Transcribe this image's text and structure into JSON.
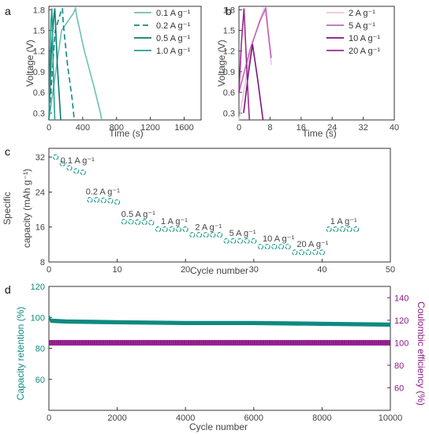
{
  "chart_data": [
    {
      "panel": "a",
      "type": "line",
      "xlabel": "Time (s)",
      "ylabel": "Voltage (V)",
      "xlim": [
        0,
        1800
      ],
      "ylim": [
        0.2,
        1.85
      ],
      "xticks": [
        "0",
        "400",
        "800",
        "1200",
        "1600"
      ],
      "yticks": [
        "0.3",
        "0.6",
        "0.9",
        "1.2",
        "1.5",
        "1.8"
      ],
      "legend": "top-right",
      "series": [
        {
          "name": "0.1 A g⁻¹",
          "color": "#6cc0b4",
          "dash": "",
          "points": [
            [
              0,
              0.2
            ],
            [
              150,
              1.5
            ],
            [
              290,
              1.75
            ],
            [
              315,
              1.82
            ],
            [
              330,
              1.7
            ],
            [
              420,
              1.2
            ],
            [
              530,
              0.7
            ],
            [
              610,
              0.3
            ],
            [
              625,
              0.2
            ]
          ]
        },
        {
          "name": "0.2 A g⁻¹",
          "color": "#0e8a80",
          "dash": "7,4",
          "points": [
            [
              0,
              0.2
            ],
            [
              75,
              1.5
            ],
            [
              145,
              1.78
            ],
            [
              160,
              1.82
            ],
            [
              170,
              1.6
            ],
            [
              220,
              1.0
            ],
            [
              275,
              0.5
            ],
            [
              300,
              0.2
            ]
          ]
        },
        {
          "name": "0.5 A g⁻¹",
          "color": "#0b7a73",
          "dash": "",
          "points": [
            [
              0,
              0.2
            ],
            [
              30,
              1.2
            ],
            [
              55,
              1.65
            ],
            [
              70,
              1.82
            ],
            [
              78,
              1.6
            ],
            [
              100,
              1.0
            ],
            [
              125,
              0.5
            ],
            [
              140,
              0.2
            ]
          ]
        },
        {
          "name": "1.0 A g⁻¹",
          "color": "#2a9e92",
          "dash": "",
          "points": [
            [
              0,
              0.2
            ],
            [
              15,
              1.2
            ],
            [
              25,
              1.65
            ],
            [
              35,
              1.82
            ],
            [
              40,
              1.6
            ],
            [
              50,
              1.0
            ],
            [
              62,
              0.5
            ],
            [
              70,
              0.2
            ]
          ]
        }
      ]
    },
    {
      "panel": "b",
      "type": "line",
      "xlabel": "Time (s)",
      "ylabel": "Voltage (V)",
      "xlim": [
        0,
        40
      ],
      "ylim": [
        0.2,
        1.85
      ],
      "xticks": [
        "0",
        "8",
        "16",
        "24",
        "32",
        "40"
      ],
      "yticks": [
        "0.3",
        "0.6",
        "0.9",
        "1.2",
        "1.5",
        "1.8"
      ],
      "legend": "top-right",
      "series": [
        {
          "name": "2 A g⁻¹",
          "color": "#e8c4e4",
          "dash": "",
          "points": [
            [
              0,
              0.2
            ],
            [
              3,
              1.2
            ],
            [
              5,
              1.6
            ],
            [
              6.5,
              1.82
            ],
            [
              7,
              1.7
            ],
            [
              8,
              1.2
            ],
            [
              8.3,
              1.0
            ]
          ]
        },
        {
          "name": "5 A g⁻¹",
          "color": "#c266b8",
          "dash": "",
          "points": [
            [
              0,
              0.6
            ],
            [
              3,
              1.25
            ],
            [
              5.5,
              1.65
            ],
            [
              6.9,
              1.82
            ],
            [
              7.5,
              1.5
            ],
            [
              8.3,
              1.1
            ]
          ]
        },
        {
          "name": "10 A g⁻¹",
          "color": "#7d157e",
          "dash": "",
          "points": [
            [
              1.2,
              0.3
            ],
            [
              2.5,
              0.9
            ],
            [
              3.5,
              1.3
            ],
            [
              4.8,
              0.8
            ],
            [
              6.2,
              0.2
            ]
          ]
        },
        {
          "name": "20 A g⁻¹",
          "color": "#9a2a8f",
          "dash": "",
          "points": [
            [
              0,
              0.6
            ],
            [
              0.6,
              1.3
            ],
            [
              1.3,
              1.82
            ],
            [
              1.8,
              1.2
            ],
            [
              2.4,
              0.5
            ],
            [
              2.7,
              0.2
            ]
          ]
        }
      ]
    },
    {
      "panel": "c",
      "type": "scatter",
      "xlabel": "Cycle number",
      "ylabel": "Specific capacity (mAh g⁻¹)",
      "xlim": [
        0,
        50
      ],
      "ylim": [
        8,
        34
      ],
      "xticks": [
        "0",
        "10",
        "20",
        "30",
        "40",
        "50"
      ],
      "yticks": [
        "8",
        "16",
        "24",
        "32"
      ],
      "marker_color": "#1a9a8c",
      "x": [
        1,
        2,
        3,
        4,
        5,
        6,
        7,
        8,
        9,
        10,
        11,
        12,
        13,
        14,
        15,
        16,
        17,
        18,
        19,
        20,
        21,
        22,
        23,
        24,
        25,
        26,
        27,
        28,
        29,
        30,
        31,
        32,
        33,
        34,
        35,
        36,
        37,
        38,
        39,
        40,
        41,
        42,
        43,
        44,
        45
      ],
      "y": [
        32,
        30.5,
        29.5,
        28.8,
        28.5,
        22.2,
        22.2,
        22.1,
        22.0,
        21.7,
        17.2,
        17.2,
        17.1,
        17.1,
        17.0,
        15.5,
        15.5,
        15.5,
        15.5,
        15.5,
        14.2,
        14.2,
        14.2,
        14.2,
        14.2,
        12.8,
        12.8,
        12.8,
        12.8,
        12.8,
        11.5,
        11.5,
        11.5,
        11.5,
        11.5,
        10.2,
        10.2,
        10.2,
        10.2,
        10.2,
        15.5,
        15.5,
        15.5,
        15.5,
        15.5
      ],
      "annotations": [
        {
          "text": "0.1 A g⁻¹",
          "x": 1.7,
          "y": 30.6
        },
        {
          "text": "0.2 A g⁻¹",
          "x": 5.4,
          "y": 23.4
        },
        {
          "text": "0.5 A g⁻¹",
          "x": 10.6,
          "y": 18.3
        },
        {
          "text": "1 A g⁻¹",
          "x": 16.4,
          "y": 16.7
        },
        {
          "text": "2 A g⁻¹",
          "x": 21.4,
          "y": 15.3
        },
        {
          "text": "5 A g⁻¹",
          "x": 26.4,
          "y": 14.0
        },
        {
          "text": "10 A g⁻¹",
          "x": 31.3,
          "y": 12.7
        },
        {
          "text": "20 A g⁻¹",
          "x": 36.3,
          "y": 11.4
        },
        {
          "text": "1 A g⁻¹",
          "x": 41.2,
          "y": 16.7
        }
      ]
    },
    {
      "panel": "d",
      "type": "scatter",
      "xlabel": "Cycle number",
      "ylabel": "Capacity retention (%)",
      "ylabel2": "Coulombic efficiency (%)",
      "xlim": [
        0,
        10000
      ],
      "ylim": [
        40,
        120
      ],
      "ylim2": [
        40,
        150
      ],
      "xticks": [
        "0",
        "2000",
        "4000",
        "6000",
        "8000",
        "10000"
      ],
      "yticks": [
        "60",
        "80",
        "100",
        "120"
      ],
      "yticks2": [
        "60",
        "80",
        "100",
        "120",
        "140"
      ],
      "series": [
        {
          "name": "Capacity retention",
          "axis": "left",
          "color": "#0e8a80",
          "points": [
            [
              0,
              101
            ],
            [
              50,
              98
            ],
            [
              500,
              97.5
            ],
            [
              2000,
              97
            ],
            [
              4000,
              96.5
            ],
            [
              6000,
              96.5
            ],
            [
              8000,
              96
            ],
            [
              10000,
              95.5
            ]
          ]
        },
        {
          "name": "Coulombic efficiency",
          "axis": "right",
          "color": "#8e1a8a",
          "points": [
            [
              0,
              100
            ],
            [
              10000,
              100
            ]
          ]
        }
      ]
    }
  ],
  "labels": {
    "panel_a": "a",
    "panel_b": "b",
    "panel_c": "c",
    "panel_d": "d",
    "a_xlabel": "Time (s)",
    "a_ylabel": "Voltage (V)",
    "b_xlabel": "Time (s)",
    "b_ylabel": "Voltage (V)",
    "c_xlabel": "Cycle number",
    "c_ylabel_line1": "Specific",
    "c_ylabel_line2": "capacity (mAh g⁻¹)",
    "d_xlabel": "Cycle number",
    "d_ylabel_left": "Capacity retention (%)",
    "d_ylabel_right": "Coulombic efficiency (%)"
  }
}
